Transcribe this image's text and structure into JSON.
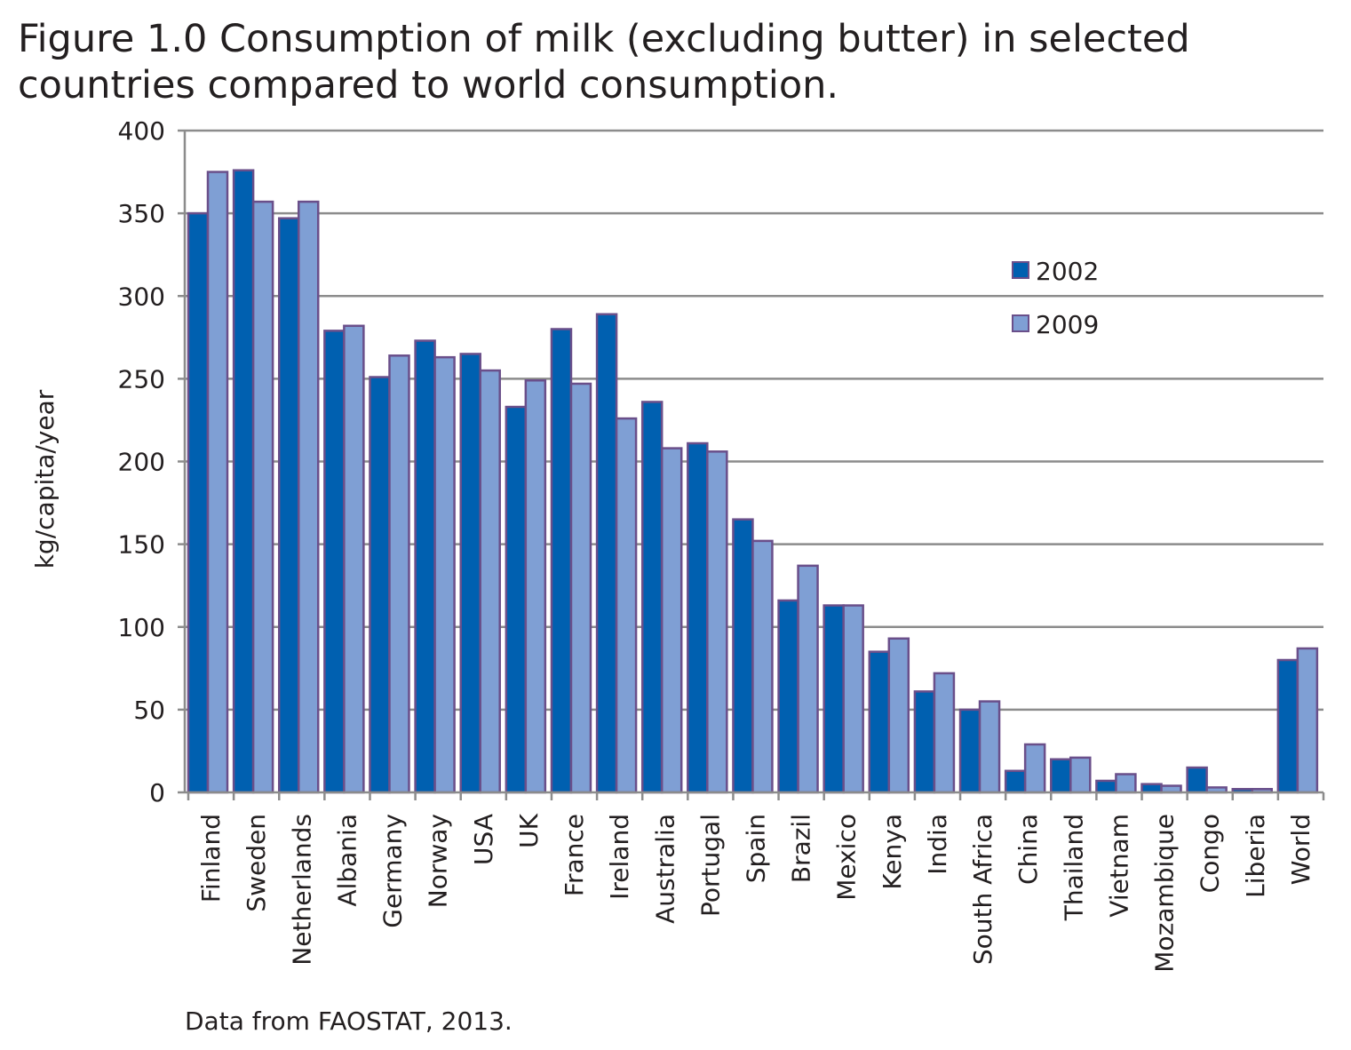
{
  "title_lines": [
    "Figure 1.0 Consumption of milk (excluding butter) in selected",
    "countries compared to world consumption."
  ],
  "source": "Data from FAOSTAT, 2013.",
  "colors": {
    "series_2002": "#0060b0",
    "series_2009": "#7f9fd4",
    "bar_border": "#6a4f8a",
    "grid": "#8c8c8c",
    "text": "#231f20"
  },
  "chart_data": {
    "type": "bar",
    "title": "Figure 1.0 Consumption of milk (excluding butter) in selected countries compared to world consumption.",
    "xlabel": "",
    "ylabel": "kg/capita/year",
    "ylim": [
      0,
      400
    ],
    "yticks": [
      0,
      50,
      100,
      150,
      200,
      250,
      300,
      350,
      400
    ],
    "grid": true,
    "legend_position": "top-right",
    "categories": [
      "Finland",
      "Sweden",
      "Netherlands",
      "Albania",
      "Germany",
      "Norway",
      "USA",
      "UK",
      "France",
      "Ireland",
      "Australia",
      "Portugal",
      "Spain",
      "Brazil",
      "Mexico",
      "Kenya",
      "India",
      "South Africa",
      "China",
      "Thailand",
      "Vietnam",
      "Mozambique",
      "Congo",
      "Liberia",
      "World"
    ],
    "series": [
      {
        "name": "2002",
        "values": [
          350,
          376,
          347,
          279,
          251,
          273,
          265,
          233,
          280,
          289,
          236,
          211,
          165,
          116,
          113,
          85,
          61,
          50,
          13,
          20,
          7,
          5,
          15,
          2,
          80
        ]
      },
      {
        "name": "2009",
        "values": [
          375,
          357,
          357,
          282,
          264,
          263,
          255,
          249,
          247,
          226,
          208,
          206,
          152,
          137,
          113,
          93,
          72,
          55,
          29,
          21,
          11,
          4,
          3,
          2,
          87
        ]
      }
    ]
  }
}
